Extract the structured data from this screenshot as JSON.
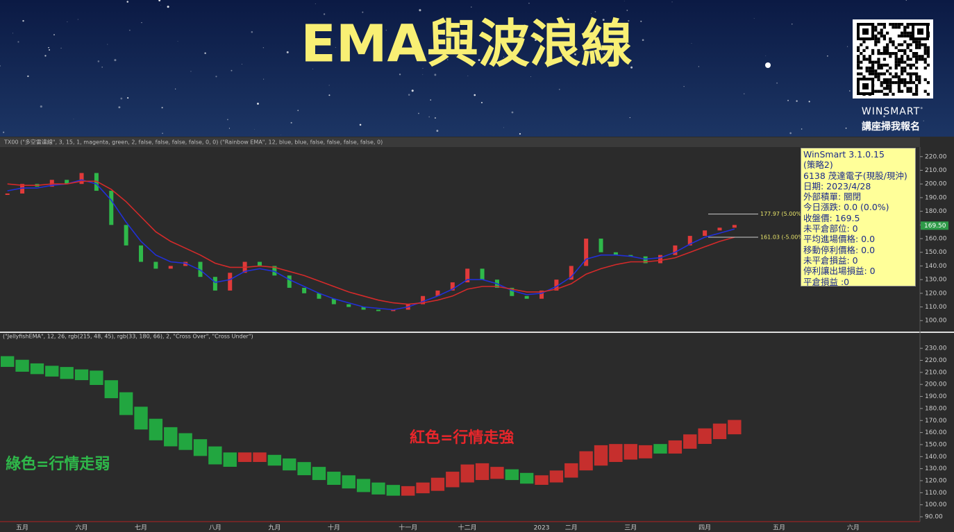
{
  "header": {
    "title": "EMA與波浪線",
    "brand": "WINSMART",
    "cta": "講座掃我報名"
  },
  "toolbar": "TX00 (\"多空雷達線\", 3, 15, 1, magenta, green, 2, false, false, false, false, 0, 0) (\"Rainbow EMA\", 12, blue, blue, false, false, false, false, 0)",
  "info_box": [
    "WinSmart 3.1.0.15",
    "(策略2)",
    "6138 茂達電子(現股/現沖)",
    "日期: 2023/4/28",
    "外部積單: 關閉",
    "今日漲跌: 0.0 (0.0%)",
    "收盤價: 169.5",
    "未平倉部位: 0",
    "平均進場價格: 0.0",
    "移動停利價格: 0.0",
    "未平倉損益: 0",
    "停利讓出場損益: 0",
    "平倉損益 :0"
  ],
  "chart_data": [
    {
      "type": "candle-line",
      "up_color": "#e03a3a",
      "down_color": "#2fb84a",
      "series": [
        {
          "values": [
            193,
            200,
            198,
            203,
            200,
            208,
            195,
            170,
            155,
            143,
            138,
            140,
            143,
            132,
            122,
            135,
            143,
            140,
            133,
            124,
            120,
            116,
            112,
            110,
            108,
            107,
            108,
            112,
            118,
            122,
            128,
            138,
            130,
            124,
            118,
            116,
            122,
            130,
            140,
            160,
            150,
            148,
            147,
            142,
            148,
            155,
            162,
            166,
            168,
            170,
            null,
            null,
            null,
            null,
            null,
            null,
            null,
            null,
            null,
            null,
            null,
            null
          ]
        },
        {
          "color": "#2130d8",
          "values": [
            195,
            197,
            197,
            199,
            200,
            203,
            200,
            188,
            172,
            158,
            148,
            143,
            142,
            137,
            128,
            130,
            136,
            138,
            136,
            130,
            125,
            120,
            116,
            113,
            110,
            109,
            108,
            110,
            114,
            118,
            123,
            130,
            130,
            127,
            122,
            119,
            120,
            125,
            132,
            145,
            148,
            148,
            147,
            145,
            146,
            150,
            156,
            161,
            164,
            167,
            null,
            null,
            null,
            null,
            null,
            null,
            null,
            null,
            null,
            null,
            null,
            null
          ]
        },
        {
          "color": "#d42a2a",
          "values": [
            200,
            199,
            199,
            200,
            200,
            202,
            202,
            196,
            187,
            176,
            165,
            158,
            153,
            148,
            142,
            139,
            139,
            140,
            139,
            136,
            133,
            129,
            125,
            121,
            118,
            115,
            113,
            112,
            113,
            115,
            118,
            123,
            125,
            125,
            123,
            121,
            121,
            123,
            127,
            134,
            138,
            141,
            143,
            143,
            144,
            146,
            150,
            154,
            158,
            161,
            null,
            null,
            null,
            null,
            null,
            null,
            null,
            null,
            null,
            null,
            null,
            null
          ]
        }
      ],
      "ylim": [
        92,
        227
      ],
      "yticks": [
        {
          "value": 100,
          "label": "100.00"
        },
        {
          "value": 110,
          "label": "110.00"
        },
        {
          "value": 120,
          "label": "120.00"
        },
        {
          "value": 130,
          "label": "130.00"
        },
        {
          "value": 140,
          "label": "140.00"
        },
        {
          "value": 150,
          "label": "150.00"
        },
        {
          "value": 160,
          "label": "160.00"
        },
        {
          "value": 170,
          "label": "170.00"
        },
        {
          "value": 180,
          "label": "180.00"
        },
        {
          "value": 190,
          "label": "190.00"
        },
        {
          "value": 200,
          "label": "200.00"
        },
        {
          "value": 210,
          "label": "210.00"
        },
        {
          "value": 220,
          "label": "220.00"
        }
      ],
      "last_price": {
        "value": 169.5,
        "label": "169.50"
      },
      "annotations": [
        {
          "value": 177.97,
          "label": "177.97 (5.00%)"
        },
        {
          "value": 161.03,
          "label": "161.03 (-5.00%)"
        }
      ]
    },
    {
      "type": "jellyfish",
      "title": "(\"JellyfishEMA\", 12, 26, rgb(215, 48, 45), rgb(33, 180, 66), 2, \"Cross Over\", \"Cross Under\")",
      "categories": [
        null,
        "五月",
        null,
        null,
        null,
        "六月",
        null,
        null,
        null,
        "七月",
        null,
        null,
        null,
        null,
        "八月",
        null,
        null,
        null,
        "九月",
        null,
        null,
        null,
        "十月",
        null,
        null,
        null,
        null,
        "十一月",
        null,
        null,
        null,
        "十二月",
        null,
        null,
        null,
        null,
        "2023",
        null,
        "二月",
        null,
        null,
        null,
        "三月",
        null,
        null,
        null,
        null,
        "四月",
        null,
        null,
        null,
        null,
        "五月",
        null,
        null,
        null,
        null,
        "六月",
        null,
        null,
        null,
        null
      ],
      "series": [
        {
          "color": "#d7302d",
          "values": [
            218,
            214,
            212,
            210,
            208,
            207,
            203,
            192,
            178,
            166,
            157,
            152,
            149,
            144,
            137,
            135,
            140,
            140,
            136,
            132,
            128,
            124,
            120,
            117,
            114,
            112,
            111,
            112,
            115,
            119,
            124,
            130,
            131,
            128,
            124,
            121,
            121,
            125,
            131,
            141,
            146,
            147,
            147,
            146,
            146,
            150,
            155,
            160,
            164,
            167,
            null,
            null,
            null,
            null,
            null,
            null,
            null,
            null,
            null,
            null,
            null,
            null
          ]
        },
        {
          "color": "#21b442",
          "values": [
            220,
            217,
            214,
            212,
            211,
            209,
            208,
            200,
            190,
            178,
            168,
            161,
            156,
            151,
            145,
            140,
            139,
            139,
            138,
            135,
            132,
            128,
            124,
            121,
            118,
            115,
            113,
            111,
            113,
            115,
            118,
            122,
            124,
            125,
            126,
            123,
            120,
            122,
            126,
            132,
            136,
            139,
            141,
            142,
            147,
            146,
            150,
            154,
            158,
            162,
            null,
            null,
            null,
            null,
            null,
            null,
            null,
            null,
            null,
            null,
            null,
            null
          ]
        }
      ],
      "ylim": [
        86,
        237
      ],
      "yticks": [
        {
          "value": 90,
          "label": "90.00"
        },
        {
          "value": 100,
          "label": "100.00"
        },
        {
          "value": 110,
          "label": "110.00"
        },
        {
          "value": 120,
          "label": "120.00"
        },
        {
          "value": 130,
          "label": "130.00"
        },
        {
          "value": 140,
          "label": "140.00"
        },
        {
          "value": 150,
          "label": "150.00"
        },
        {
          "value": 160,
          "label": "160.00"
        },
        {
          "value": 170,
          "label": "170.00"
        },
        {
          "value": 180,
          "label": "180.00"
        },
        {
          "value": 190,
          "label": "190.00"
        },
        {
          "value": 200,
          "label": "200.00"
        },
        {
          "value": 210,
          "label": "210.00"
        },
        {
          "value": 220,
          "label": "220.00"
        },
        {
          "value": 230,
          "label": "230.00"
        }
      ],
      "annotations": [
        {
          "label": "紅色=行情走強",
          "color": "#e8262b"
        },
        {
          "label": "綠色=行情走弱",
          "color": "#2fb84a"
        }
      ]
    }
  ]
}
